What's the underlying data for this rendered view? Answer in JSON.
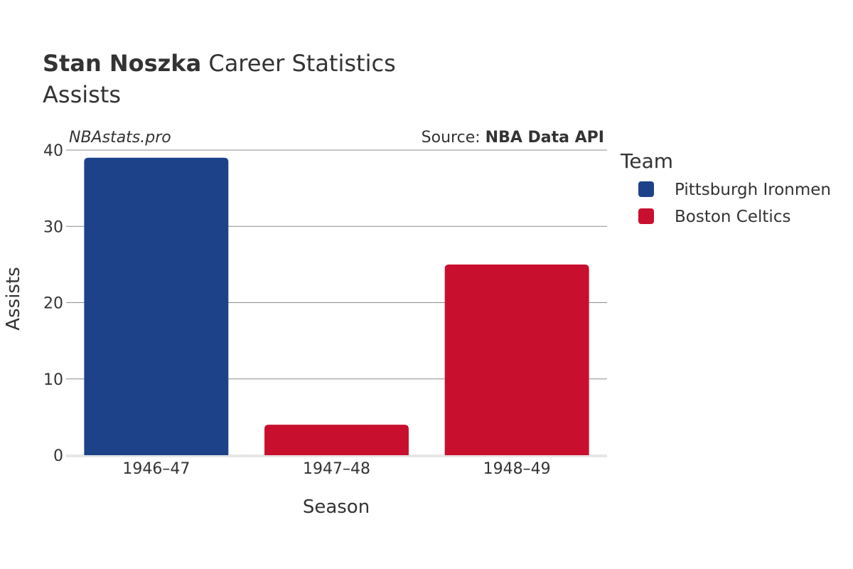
{
  "title": {
    "name": "Stan Noszka",
    "rest": "Career Statistics",
    "subtitle": "Assists"
  },
  "watermark": "NBAstats.pro",
  "source": {
    "prefix": "Source:",
    "name": "NBA Data API"
  },
  "legend": {
    "title": "Team",
    "items": [
      {
        "name": "Pittsburgh Ironmen",
        "color": "#1d428a"
      },
      {
        "name": "Boston Celtics",
        "color": "#c8102e"
      }
    ]
  },
  "chart_data": {
    "type": "bar",
    "categories": [
      "1946–47",
      "1947–48",
      "1948–49"
    ],
    "values": [
      39,
      4,
      25
    ],
    "teams": [
      "Pittsburgh Ironmen",
      "Boston Celtics",
      "Boston Celtics"
    ],
    "xlabel": "Season",
    "ylabel": "Assists",
    "ylim": [
      0,
      40
    ],
    "yticks": [
      0,
      10,
      20,
      30,
      40
    ],
    "grid": true,
    "legend_position": "right"
  }
}
